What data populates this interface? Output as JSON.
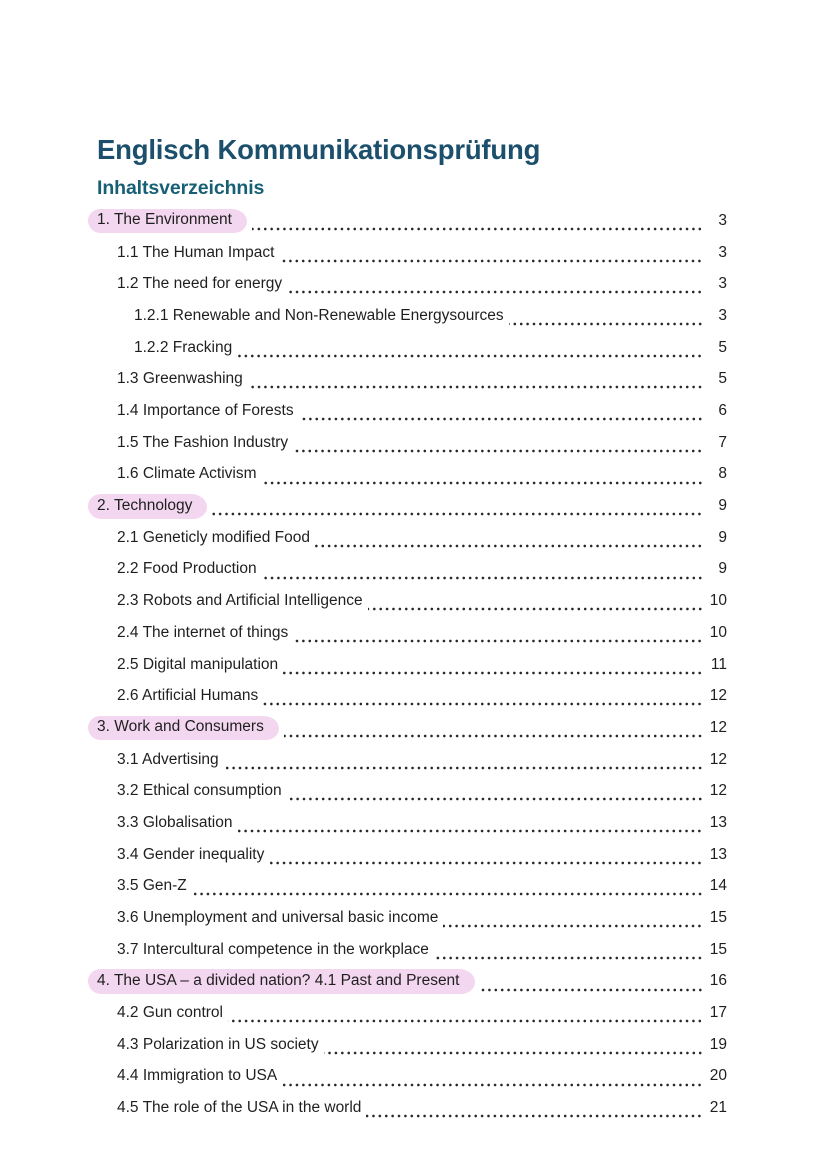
{
  "page": {
    "title": "Englisch Kommunikationsprüfung",
    "toc_heading": "Inhaltsverzeichnis"
  },
  "colors": {
    "title_text": "#1b4f6b",
    "heading_text": "#175f74",
    "body_text": "#1f1f1f",
    "highlight_pink": "#f3d6ef",
    "page_background": "#ffffff"
  },
  "toc": {
    "entries": [
      {
        "label": "1. The Environment",
        "page": "3",
        "level": 1,
        "highlight": true
      },
      {
        "label": "1.1 The Human Impact",
        "page": "3",
        "level": 2,
        "highlight": false
      },
      {
        "label": "1.2 The need for energy",
        "page": "3",
        "level": 2,
        "highlight": false
      },
      {
        "label": "1.2.1 Renewable and Non-Renewable Energysources",
        "page": "3",
        "level": 3,
        "highlight": false
      },
      {
        "label": "1.2.2 Fracking",
        "page": "5",
        "level": 3,
        "highlight": false
      },
      {
        "label": "1.3 Greenwashing",
        "page": "5",
        "level": 2,
        "highlight": false
      },
      {
        "label": "1.4 Importance of Forests",
        "page": "6",
        "level": 2,
        "highlight": false
      },
      {
        "label": "1.5 The Fashion Industry",
        "page": "7",
        "level": 2,
        "highlight": false
      },
      {
        "label": "1.6 Climate Activism",
        "page": "8",
        "level": 2,
        "highlight": false
      },
      {
        "label": "2. Technology",
        "page": "9",
        "level": 1,
        "highlight": true
      },
      {
        "label": "2.1 Geneticly modified Food",
        "page": "9",
        "level": 2,
        "highlight": false
      },
      {
        "label": "2.2 Food Production",
        "page": "9",
        "level": 2,
        "highlight": false
      },
      {
        "label": "2.3 Robots and Artificial Intelligence",
        "page": "10",
        "level": 2,
        "highlight": false
      },
      {
        "label": "2.4 The internet of things",
        "page": "10",
        "level": 2,
        "highlight": false
      },
      {
        "label": "2.5 Digital manipulation",
        "page": "11",
        "level": 2,
        "highlight": false
      },
      {
        "label": "2.6 Artificial Humans",
        "page": "12",
        "level": 2,
        "highlight": false
      },
      {
        "label": "3. Work and Consumers",
        "page": "12",
        "level": 1,
        "highlight": true
      },
      {
        "label": "3.1 Advertising",
        "page": "12",
        "level": 2,
        "highlight": false
      },
      {
        "label": "3.2 Ethical consumption",
        "page": "12",
        "level": 2,
        "highlight": false
      },
      {
        "label": "3.3 Globalisation",
        "page": "13",
        "level": 2,
        "highlight": false
      },
      {
        "label": "3.4 Gender inequality",
        "page": "13",
        "level": 2,
        "highlight": false
      },
      {
        "label": "3.5 Gen-Z",
        "page": "14",
        "level": 2,
        "highlight": false
      },
      {
        "label": "3.6 Unemployment and universal basic income",
        "page": "15",
        "level": 2,
        "highlight": false
      },
      {
        "label": "3.7 Intercultural competence in the workplace",
        "page": "15",
        "level": 2,
        "highlight": false
      },
      {
        "label": "4. The USA – a divided nation? 4.1 Past and Present",
        "page": "16",
        "level": 1,
        "highlight": true
      },
      {
        "label": "4.2 Gun control",
        "page": "17",
        "level": 2,
        "highlight": false
      },
      {
        "label": "4.3 Polarization in US society",
        "page": "19",
        "level": 2,
        "highlight": false
      },
      {
        "label": "4.4 Immigration to USA",
        "page": "20",
        "level": 2,
        "highlight": false
      },
      {
        "label": "4.5 The role of the USA in the world",
        "page": "21",
        "level": 2,
        "highlight": false
      }
    ]
  }
}
